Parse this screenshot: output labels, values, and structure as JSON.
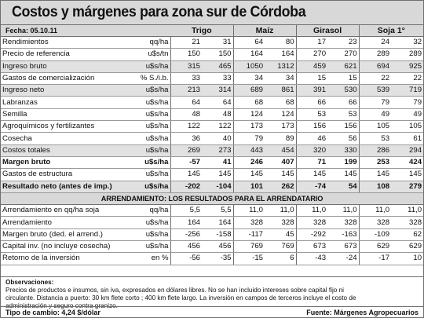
{
  "title": "Costos y márgenes para zona sur de Córdoba",
  "date_label": "Fecha: 05.10.11",
  "crops": [
    "Trigo",
    "Maíz",
    "Girasol",
    "Soja 1°"
  ],
  "rows": [
    {
      "label": "Rendimientos",
      "unit": "qq/ha",
      "v": [
        "21",
        "31",
        "64",
        "80",
        "17",
        "23",
        "24",
        "32"
      ]
    },
    {
      "label": "Precio de referencia",
      "unit": "u$s/tn",
      "v": [
        "150",
        "150",
        "164",
        "164",
        "270",
        "270",
        "289",
        "289"
      ]
    },
    {
      "label": "Ingreso bruto",
      "unit": "u$s/ha",
      "v": [
        "315",
        "465",
        "1050",
        "1312",
        "459",
        "621",
        "694",
        "925"
      ],
      "shade": true
    },
    {
      "label": "Gastos de comercialización",
      "unit": "% S./i.b.",
      "v": [
        "33",
        "33",
        "34",
        "34",
        "15",
        "15",
        "22",
        "22"
      ]
    },
    {
      "label": "Ingreso neto",
      "unit": "u$s/ha",
      "v": [
        "213",
        "314",
        "689",
        "861",
        "391",
        "530",
        "539",
        "719"
      ],
      "shade": true
    },
    {
      "label": "Labranzas",
      "unit": "u$s/ha",
      "v": [
        "64",
        "64",
        "68",
        "68",
        "66",
        "66",
        "79",
        "79"
      ]
    },
    {
      "label": "Semilla",
      "unit": "u$s/ha",
      "v": [
        "48",
        "48",
        "124",
        "124",
        "53",
        "53",
        "49",
        "49"
      ]
    },
    {
      "label": "Agroquímicos y fertilizantes",
      "unit": "u$s/ha",
      "v": [
        "122",
        "122",
        "173",
        "173",
        "156",
        "156",
        "105",
        "105"
      ]
    },
    {
      "label": "Cosecha",
      "unit": "u$s/ha",
      "v": [
        "36",
        "40",
        "79",
        "89",
        "46",
        "56",
        "53",
        "61"
      ]
    },
    {
      "label": "Costos totales",
      "unit": "u$s/ha",
      "v": [
        "269",
        "273",
        "443",
        "454",
        "320",
        "330",
        "286",
        "294"
      ],
      "shade": true
    },
    {
      "label": "Margen bruto",
      "unit": "u$s/ha",
      "v": [
        "-57",
        "41",
        "246",
        "407",
        "71",
        "199",
        "253",
        "424"
      ],
      "bold": true
    },
    {
      "label": "Gastos de estructura",
      "unit": "u$s/ha",
      "v": [
        "145",
        "145",
        "145",
        "145",
        "145",
        "145",
        "145",
        "145"
      ]
    },
    {
      "label": "Resultado neto (antes de imp.)",
      "unit": "u$s/ha",
      "v": [
        "-202",
        "-104",
        "101",
        "262",
        "-74",
        "54",
        "108",
        "279"
      ],
      "bold": true,
      "shade": true
    }
  ],
  "section_title": "ARRENDAMIENTO: LOS RESULTADOS PARA EL ARRENDATARIO",
  "rows2": [
    {
      "label": "Arrendamiento en qq/ha soja",
      "unit": "qq/ha",
      "v": [
        "5,5",
        "5,5",
        "11,0",
        "11,0",
        "11,0",
        "11,0",
        "11,0",
        "11,0"
      ]
    },
    {
      "label": "Arrendamiento",
      "unit": "u$s/ha",
      "v": [
        "164",
        "164",
        "328",
        "328",
        "328",
        "328",
        "328",
        "328"
      ]
    },
    {
      "label": "Margen bruto (ded. el arrend.)",
      "unit": "u$s/ha",
      "v": [
        "-256",
        "-158",
        "-117",
        "45",
        "-292",
        "-163",
        "-109",
        "62"
      ]
    },
    {
      "label": "Capital inv. (no incluye cosecha)",
      "unit": "u$s/ha",
      "v": [
        "456",
        "456",
        "769",
        "769",
        "673",
        "673",
        "629",
        "629"
      ]
    },
    {
      "label": "Retorno de la inversión",
      "unit": "en %",
      "v": [
        "-56",
        "-35",
        "-15",
        "6",
        "-43",
        "-24",
        "-17",
        "10"
      ]
    }
  ],
  "notes_heading": "Observaciones:",
  "notes_lines": [
    "Precios de productos e insumos, sin iva, expresados en dólares libres. No se han incluido intereses sobre capital fijo ni",
    "circulante. Distancia a puerto: 30 km  flete corto ; 400 km flete largo. La inversión en campos de terceros incluye el costo de",
    "administración y seguro contra granizo."
  ],
  "footer_left": "Tipo de cambio: 4,24 $/dólar",
  "footer_right": "Fuente: Márgenes Agropecuarios"
}
